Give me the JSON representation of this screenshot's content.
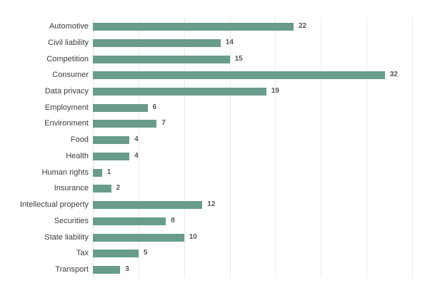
{
  "chart_data": {
    "type": "bar",
    "orientation": "horizontal",
    "title": "",
    "xlabel": "",
    "ylabel": "",
    "categories": [
      "Automotive",
      "Civil liability",
      "Competition",
      "Consumer",
      "Data privacy",
      "Employment",
      "Environment",
      "Food",
      "Health",
      "Human rights",
      "Insurance",
      "Intellectual property",
      "Securities",
      "State liability",
      "Tax",
      "Transport"
    ],
    "values": [
      22,
      14,
      15,
      32,
      19,
      6,
      7,
      4,
      4,
      1,
      2,
      12,
      8,
      10,
      5,
      3
    ],
    "xlim": [
      0,
      35
    ],
    "grid_values": [
      0,
      5,
      10,
      15,
      20,
      25,
      30,
      35
    ],
    "grid": "vertical-only",
    "axis_tick_labels": "none",
    "legend": "none",
    "value_labels": "right-of-bar",
    "colors": {
      "bar": "#699c8d",
      "grid": "#e9e9e9",
      "zero_line": "#c9c9c9",
      "category_label": "#3c3c3c",
      "value_label": "#565656",
      "background": "#ffffff"
    }
  }
}
